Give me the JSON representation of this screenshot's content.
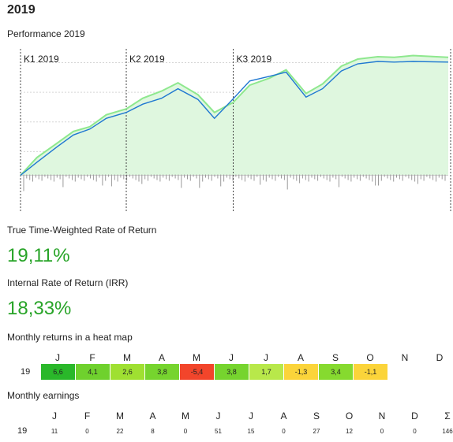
{
  "header": {
    "title": "2019",
    "subtitle": "Performance 2019"
  },
  "chart_data": {
    "type": "line",
    "quarter_labels": [
      "K1 2019",
      "K2 2019",
      "K3 2019"
    ],
    "x": [
      "2019-01-01",
      "2019-01-15",
      "2019-02-01",
      "2019-02-15",
      "2019-03-01",
      "2019-03-15",
      "2019-04-01",
      "2019-04-15",
      "2019-05-01",
      "2019-05-15",
      "2019-06-01",
      "2019-06-15",
      "2019-07-01",
      "2019-07-15",
      "2019-08-01",
      "2019-08-15",
      "2019-09-01",
      "2019-09-15",
      "2019-10-01",
      "2019-10-15",
      "2019-11-01",
      "2019-11-15",
      "2019-12-01",
      "2019-12-31"
    ],
    "series": [
      {
        "values": [
          0.0,
          2.2,
          4.8,
          6.8,
          7.8,
          9.6,
          10.6,
          12.0,
          13.0,
          14.6,
          12.8,
          9.6,
          12.9,
          15.9,
          16.7,
          17.4,
          13.2,
          14.6,
          17.6,
          18.8,
          19.2,
          19.1,
          19.2,
          19.1
        ]
      },
      {
        "values": [
          0.0,
          3.0,
          5.4,
          7.4,
          8.2,
          10.2,
          11.2,
          13.0,
          14.2,
          15.6,
          13.6,
          10.6,
          12.3,
          15.2,
          16.4,
          17.8,
          13.8,
          15.4,
          18.4,
          19.6,
          20.0,
          19.9,
          20.2,
          19.9
        ]
      }
    ],
    "ylim": [
      -1,
      20
    ],
    "grid": true,
    "colors": {
      "primary": "#1f78d1",
      "secondary": "#8ee88e",
      "fill": "#dff7df",
      "bars": "#9a9a9a"
    }
  },
  "metrics": {
    "twr_label": "True Time-Weighted Rate of Return",
    "twr_value": "19,11%",
    "irr_label": "Internal Rate of Return (IRR)",
    "irr_value": "18,33%"
  },
  "heatmap": {
    "title": "Monthly returns in a heat map",
    "months": [
      "J",
      "F",
      "M",
      "A",
      "M",
      "J",
      "J",
      "A",
      "S",
      "O",
      "N",
      "D"
    ],
    "year": "19",
    "values": [
      "6,6",
      "4,1",
      "2,6",
      "3,8",
      "-5,4",
      "3,8",
      "1,7",
      "-1,3",
      "3,4",
      "-1,1"
    ],
    "colors": [
      "#2ab82a",
      "#6fd12d",
      "#9fe031",
      "#76d42e",
      "#f2452b",
      "#76d42e",
      "#b8e84a",
      "#fbd43a",
      "#86da2f",
      "#fbd43a"
    ]
  },
  "earnings": {
    "title": "Monthly earnings",
    "months": [
      "J",
      "F",
      "M",
      "A",
      "M",
      "J",
      "J",
      "A",
      "S",
      "O",
      "N",
      "D",
      "Σ"
    ],
    "year": "19",
    "values": [
      "11",
      "0",
      "22",
      "8",
      "0",
      "51",
      "15",
      "0",
      "27",
      "12",
      "0",
      "0",
      "146"
    ]
  }
}
